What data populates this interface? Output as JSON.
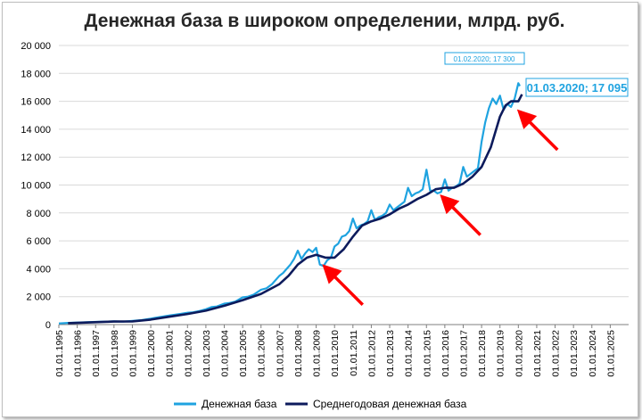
{
  "chart_data": {
    "type": "line",
    "title": "Денежная база в широком определении, млрд. руб.",
    "ylim": [
      0,
      20000
    ],
    "yticks": [
      "0",
      "2 000",
      "4 000",
      "6 000",
      "8 000",
      "10 000",
      "12 000",
      "14 000",
      "16 000",
      "18 000",
      "20 000"
    ],
    "x_categories": [
      "01.01.1995",
      "01.01.1996",
      "01.01.1997",
      "01.01.1998",
      "01.01.1999",
      "01.01.2000",
      "01.01.2001",
      "01.01.2002",
      "01.01.2003",
      "01.01.2004",
      "01.01.2005",
      "01.01.2006",
      "01.01.2007",
      "01.01.2008",
      "01.01.2009",
      "01.01.2010",
      "01.01.2011",
      "01.01.2012",
      "01.01.2013",
      "01.01.2014",
      "01.01.2015",
      "01.01.2016",
      "01.01.2017",
      "01.01.2018",
      "01.01.2019",
      "01.01.2020",
      "01.01.2021",
      "01.01.2022",
      "01.01.2023",
      "01.01.2024",
      "01.01.2025"
    ],
    "grid": "horizontal",
    "legend_position": "bottom",
    "series": [
      {
        "name": "Денежная база",
        "color": "#1fa3e0",
        "points": [
          [
            1995.0,
            80
          ],
          [
            1995.5,
            120
          ],
          [
            1996.0,
            150
          ],
          [
            1996.5,
            170
          ],
          [
            1997.0,
            190
          ],
          [
            1997.5,
            210
          ],
          [
            1998.0,
            230
          ],
          [
            1998.5,
            210
          ],
          [
            1999.0,
            270
          ],
          [
            1999.5,
            320
          ],
          [
            2000.0,
            430
          ],
          [
            2000.3,
            500
          ],
          [
            2000.6,
            560
          ],
          [
            2001.0,
            650
          ],
          [
            2001.3,
            700
          ],
          [
            2001.6,
            760
          ],
          [
            2002.0,
            850
          ],
          [
            2002.3,
            880
          ],
          [
            2002.6,
            960
          ],
          [
            2003.0,
            1100
          ],
          [
            2003.3,
            1250
          ],
          [
            2003.6,
            1300
          ],
          [
            2004.0,
            1500
          ],
          [
            2004.3,
            1550
          ],
          [
            2004.6,
            1650
          ],
          [
            2005.0,
            1950
          ],
          [
            2005.3,
            2000
          ],
          [
            2005.6,
            2150
          ],
          [
            2006.0,
            2500
          ],
          [
            2006.3,
            2600
          ],
          [
            2006.6,
            2900
          ],
          [
            2007.0,
            3500
          ],
          [
            2007.2,
            3700
          ],
          [
            2007.4,
            4000
          ],
          [
            2007.6,
            4300
          ],
          [
            2007.8,
            4700
          ],
          [
            2008.0,
            5300
          ],
          [
            2008.2,
            4700
          ],
          [
            2008.4,
            5100
          ],
          [
            2008.6,
            5400
          ],
          [
            2008.8,
            5200
          ],
          [
            2009.0,
            5500
          ],
          [
            2009.2,
            4300
          ],
          [
            2009.4,
            4200
          ],
          [
            2009.6,
            4600
          ],
          [
            2009.8,
            4800
          ],
          [
            2010.0,
            5600
          ],
          [
            2010.2,
            5800
          ],
          [
            2010.4,
            6300
          ],
          [
            2010.6,
            6400
          ],
          [
            2010.8,
            6700
          ],
          [
            2011.0,
            7600
          ],
          [
            2011.2,
            6900
          ],
          [
            2011.4,
            7100
          ],
          [
            2011.6,
            7200
          ],
          [
            2011.8,
            7400
          ],
          [
            2012.0,
            8200
          ],
          [
            2012.2,
            7500
          ],
          [
            2012.4,
            7700
          ],
          [
            2012.6,
            7800
          ],
          [
            2012.8,
            8000
          ],
          [
            2013.0,
            8600
          ],
          [
            2013.2,
            8200
          ],
          [
            2013.4,
            8400
          ],
          [
            2013.6,
            8600
          ],
          [
            2013.8,
            8800
          ],
          [
            2014.0,
            9800
          ],
          [
            2014.2,
            9200
          ],
          [
            2014.4,
            9400
          ],
          [
            2014.6,
            9500
          ],
          [
            2014.8,
            9700
          ],
          [
            2015.0,
            11100
          ],
          [
            2015.2,
            9600
          ],
          [
            2015.4,
            9600
          ],
          [
            2015.6,
            9400
          ],
          [
            2015.8,
            9500
          ],
          [
            2016.0,
            10400
          ],
          [
            2016.2,
            9600
          ],
          [
            2016.4,
            9800
          ],
          [
            2016.6,
            9900
          ],
          [
            2016.8,
            10100
          ],
          [
            2017.0,
            11300
          ],
          [
            2017.2,
            10600
          ],
          [
            2017.4,
            10800
          ],
          [
            2017.6,
            11000
          ],
          [
            2017.8,
            11200
          ],
          [
            2018.0,
            13100
          ],
          [
            2018.2,
            14500
          ],
          [
            2018.4,
            15500
          ],
          [
            2018.6,
            16200
          ],
          [
            2018.8,
            15800
          ],
          [
            2019.0,
            16400
          ],
          [
            2019.2,
            15400
          ],
          [
            2019.4,
            15800
          ],
          [
            2019.6,
            15600
          ],
          [
            2019.8,
            16200
          ],
          [
            2020.0,
            17300
          ],
          [
            2020.08,
            17095
          ]
        ]
      },
      {
        "name": "Среднегодовая денежная база",
        "color": "#0d1b5c",
        "points": [
          [
            1995.5,
            100
          ],
          [
            1996.0,
            120
          ],
          [
            1997.0,
            170
          ],
          [
            1998.0,
            220
          ],
          [
            1999.0,
            230
          ],
          [
            2000.0,
            360
          ],
          [
            2001.0,
            560
          ],
          [
            2002.0,
            760
          ],
          [
            2003.0,
            1000
          ],
          [
            2004.0,
            1350
          ],
          [
            2005.0,
            1750
          ],
          [
            2006.0,
            2200
          ],
          [
            2007.0,
            2900
          ],
          [
            2007.5,
            3500
          ],
          [
            2008.0,
            4300
          ],
          [
            2008.5,
            4800
          ],
          [
            2009.0,
            5000
          ],
          [
            2009.5,
            4800
          ],
          [
            2010.0,
            4800
          ],
          [
            2010.5,
            5400
          ],
          [
            2011.0,
            6300
          ],
          [
            2011.5,
            7100
          ],
          [
            2012.0,
            7400
          ],
          [
            2012.5,
            7600
          ],
          [
            2013.0,
            7900
          ],
          [
            2013.5,
            8300
          ],
          [
            2014.0,
            8600
          ],
          [
            2014.5,
            9000
          ],
          [
            2015.0,
            9300
          ],
          [
            2015.5,
            9700
          ],
          [
            2016.0,
            9800
          ],
          [
            2016.5,
            9800
          ],
          [
            2017.0,
            10100
          ],
          [
            2017.5,
            10600
          ],
          [
            2018.0,
            11300
          ],
          [
            2018.5,
            12700
          ],
          [
            2019.0,
            14900
          ],
          [
            2019.3,
            15700
          ],
          [
            2019.6,
            16000
          ],
          [
            2020.0,
            16000
          ],
          [
            2020.2,
            16500
          ]
        ]
      }
    ],
    "annotations": {
      "small_label": "01.02.2020;  17 300",
      "big_label": "01.03.2020;  17 095",
      "arrows_color": "#ff0000"
    }
  }
}
